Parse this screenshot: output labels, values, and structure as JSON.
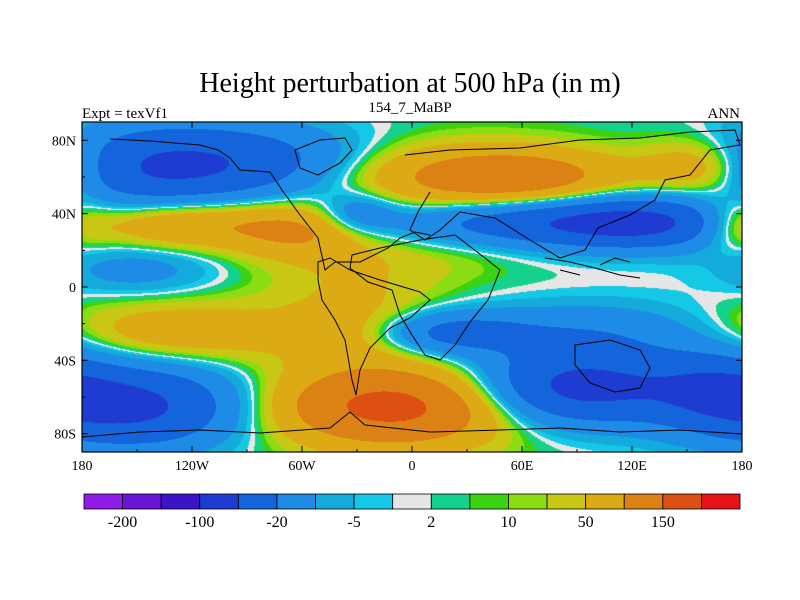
{
  "chart_data": {
    "type": "heatmap",
    "title": "Height perturbation at 500 hPa (in m)",
    "left_string": "Expt = texVf1",
    "center_string": "154_7_MaBP",
    "right_string": "ANN",
    "xlim": [
      -180,
      180
    ],
    "ylim": [
      -90,
      90
    ],
    "x_ticks": [
      {
        "value": -180,
        "label": "180"
      },
      {
        "value": -120,
        "label": "120W"
      },
      {
        "value": -60,
        "label": "60W"
      },
      {
        "value": 0,
        "label": "0"
      },
      {
        "value": 60,
        "label": "60E"
      },
      {
        "value": 120,
        "label": "120E"
      },
      {
        "value": 180,
        "label": "180"
      }
    ],
    "y_ticks": [
      {
        "value": 80,
        "label": "80N"
      },
      {
        "value": 40,
        "label": "40N"
      },
      {
        "value": 0,
        "label": "0"
      },
      {
        "value": -40,
        "label": "40S"
      },
      {
        "value": -80,
        "label": "80S"
      }
    ],
    "colorbar": {
      "colors": [
        "#8c1ce6",
        "#6a14d8",
        "#3c14c8",
        "#1e3cd2",
        "#1464dc",
        "#1e8ce6",
        "#14aadc",
        "#14c8e6",
        "#e6e6e6",
        "#14d28c",
        "#3cd214",
        "#8cdc14",
        "#c8c814",
        "#dcaa14",
        "#dc8214",
        "#dc5014",
        "#e61414"
      ],
      "labels": [
        {
          "boundary": 1,
          "text": "-200"
        },
        {
          "boundary": 3,
          "text": "-100"
        },
        {
          "boundary": 5,
          "text": "-20"
        },
        {
          "boundary": 7,
          "text": "-5"
        },
        {
          "boundary": 9,
          "text": "2"
        },
        {
          "boundary": 11,
          "text": "10"
        },
        {
          "boundary": 13,
          "text": "50"
        },
        {
          "boundary": 15,
          "text": "150"
        }
      ]
    },
    "field_blobs_m": [
      {
        "lon": -140,
        "lat": 65,
        "value": -100,
        "slon": 45,
        "slat": 16
      },
      {
        "lon": -80,
        "lat": 70,
        "value": -40,
        "slon": 40,
        "slat": 14
      },
      {
        "lon": 30,
        "lat": 60,
        "value": 60,
        "slon": 45,
        "slat": 12
      },
      {
        "lon": 70,
        "lat": 60,
        "value": 40,
        "slon": 35,
        "slat": 10
      },
      {
        "lon": 160,
        "lat": 65,
        "value": 60,
        "slon": 25,
        "slat": 12
      },
      {
        "lon": -130,
        "lat": 35,
        "value": 60,
        "slon": 50,
        "slat": 10
      },
      {
        "lon": -60,
        "lat": 30,
        "value": 40,
        "slon": 25,
        "slat": 10
      },
      {
        "lon": -30,
        "lat": 40,
        "value": -40,
        "slon": 15,
        "slat": 8
      },
      {
        "lon": 60,
        "lat": 35,
        "value": -70,
        "slon": 55,
        "slat": 9
      },
      {
        "lon": 130,
        "lat": 35,
        "value": -100,
        "slon": 40,
        "slat": 10
      },
      {
        "lon": 175,
        "lat": 35,
        "value": 40,
        "slon": 15,
        "slat": 10
      },
      {
        "lon": -150,
        "lat": 10,
        "value": -30,
        "slon": 30,
        "slat": 10
      },
      {
        "lon": -30,
        "lat": 5,
        "value": 20,
        "slon": 35,
        "slat": 20
      },
      {
        "lon": 25,
        "lat": 20,
        "value": 8,
        "slon": 30,
        "slat": 10
      },
      {
        "lon": 130,
        "lat": 5,
        "value": -1,
        "slon": 40,
        "slat": 8
      },
      {
        "lon": -130,
        "lat": -25,
        "value": 40,
        "slon": 50,
        "slat": 12
      },
      {
        "lon": -30,
        "lat": -25,
        "value": 25,
        "slon": 25,
        "slat": 12
      },
      {
        "lon": 20,
        "lat": -25,
        "value": -60,
        "slon": 30,
        "slat": 8
      },
      {
        "lon": 100,
        "lat": -25,
        "value": -40,
        "slon": 50,
        "slat": 12
      },
      {
        "lon": -150,
        "lat": -65,
        "value": -110,
        "slon": 40,
        "slat": 16
      },
      {
        "lon": -10,
        "lat": -65,
        "value": 120,
        "slon": 45,
        "slat": 15
      },
      {
        "lon": 90,
        "lat": -55,
        "value": -120,
        "slon": 40,
        "slat": 14
      },
      {
        "lon": 165,
        "lat": -55,
        "value": -60,
        "slon": 25,
        "slat": 15
      }
    ]
  }
}
